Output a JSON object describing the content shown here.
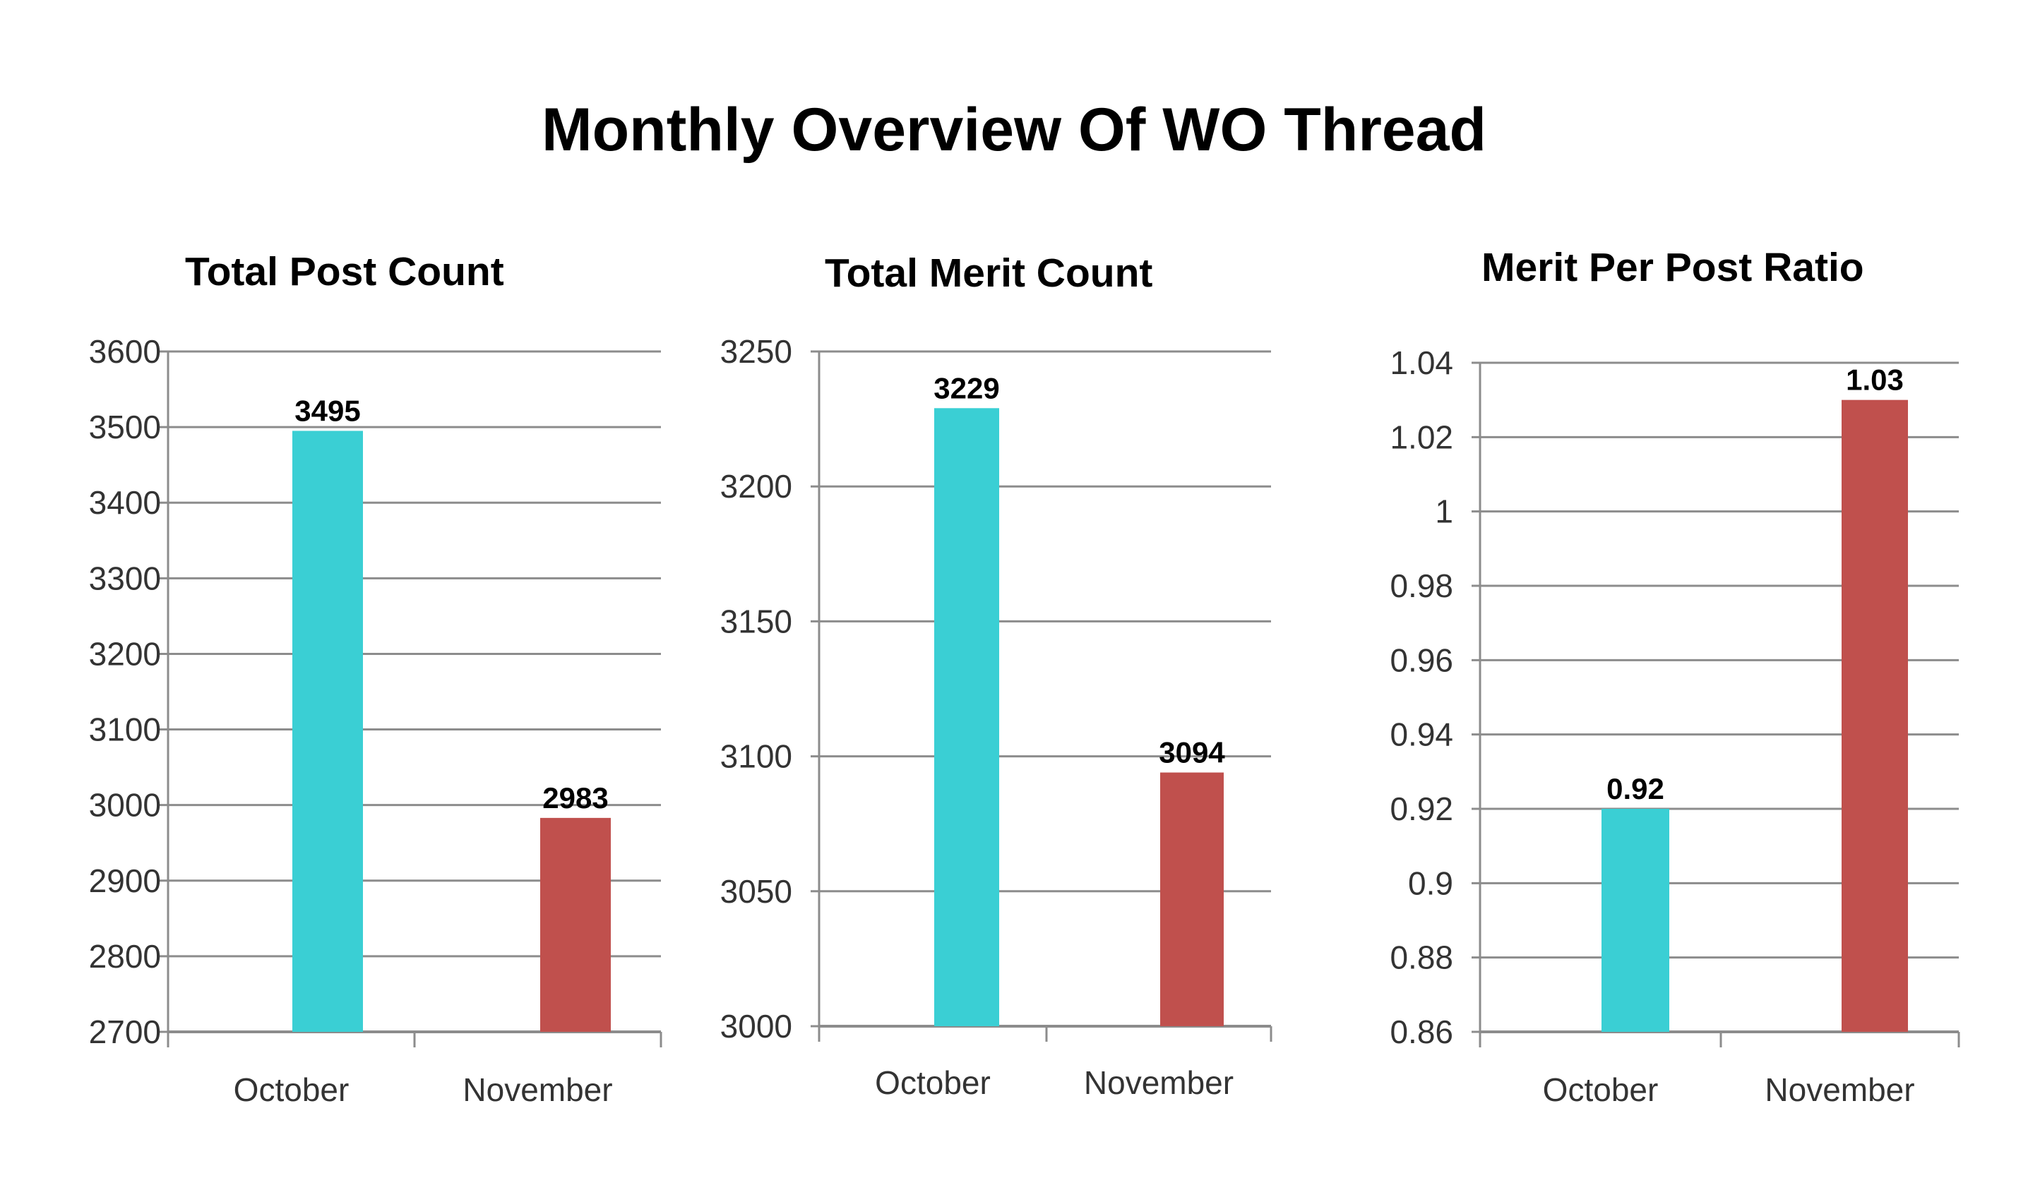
{
  "title": "Monthly Overview Of WO Thread",
  "colors": {
    "october": "#3ACFD4",
    "november": "#C0504D",
    "grid": "#8C8C8C"
  },
  "chart_data": [
    {
      "type": "bar",
      "title": "Total Post Count",
      "categories": [
        "October",
        "November"
      ],
      "values": [
        3495,
        2983
      ],
      "value_labels": [
        "3495",
        "2983"
      ],
      "yticks": [
        2700,
        2800,
        2900,
        3000,
        3100,
        3200,
        3300,
        3400,
        3500,
        3600
      ],
      "ytick_labels": [
        "2700",
        "2800",
        "2900",
        "3000",
        "3100",
        "3200",
        "3300",
        "3400",
        "3500",
        "3600"
      ],
      "ylim": [
        2700,
        3600
      ],
      "grid": true,
      "legend": false
    },
    {
      "type": "bar",
      "title": "Total Merit Count",
      "categories": [
        "October",
        "November"
      ],
      "values": [
        3229,
        3094
      ],
      "value_labels": [
        "3229",
        "3094"
      ],
      "yticks": [
        3000,
        3050,
        3100,
        3150,
        3200,
        3250
      ],
      "ytick_labels": [
        "3000",
        "3050",
        "3100",
        "3150",
        "3200",
        "3250"
      ],
      "ylim": [
        3000,
        3250
      ],
      "grid": true,
      "legend": false
    },
    {
      "type": "bar",
      "title": "Merit Per Post Ratio",
      "categories": [
        "October",
        "November"
      ],
      "values": [
        0.92,
        1.03
      ],
      "value_labels": [
        "0.92",
        "1.03"
      ],
      "yticks": [
        0.86,
        0.88,
        0.9,
        0.92,
        0.94,
        0.96,
        0.98,
        1.0,
        1.02,
        1.04
      ],
      "ytick_labels": [
        "0.86",
        "0.88",
        "0.9",
        "0.92",
        "0.94",
        "0.96",
        "0.98",
        "1",
        "1.02",
        "1.04"
      ],
      "ylim": [
        0.86,
        1.04
      ],
      "grid": true,
      "legend": false
    }
  ]
}
